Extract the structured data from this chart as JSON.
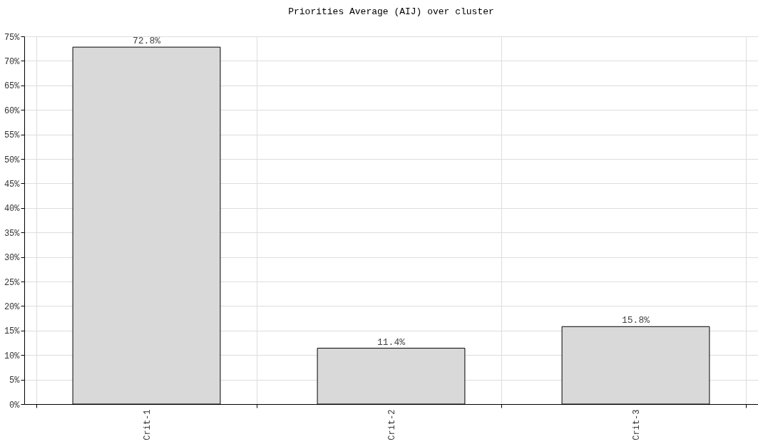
{
  "chart_data": {
    "type": "bar",
    "title": "Priorities Average (AIJ) over cluster",
    "categories": [
      "Crit-1",
      "Crit-2",
      "Crit-3"
    ],
    "values": [
      72.8,
      11.4,
      15.8
    ],
    "value_labels": [
      "72.8%",
      "11.4%",
      "15.8%"
    ],
    "color": "#d9d9d9",
    "ylim": [
      0,
      75
    ],
    "yticks": [
      {
        "value": 0,
        "label": "0%"
      },
      {
        "value": 5,
        "label": "5%"
      },
      {
        "value": 10,
        "label": "10%"
      },
      {
        "value": 15,
        "label": "15%"
      },
      {
        "value": 20,
        "label": "20%"
      },
      {
        "value": 25,
        "label": "25%"
      },
      {
        "value": 30,
        "label": "30%"
      },
      {
        "value": 35,
        "label": "35%"
      },
      {
        "value": 40,
        "label": "40%"
      },
      {
        "value": 45,
        "label": "45%"
      },
      {
        "value": 50,
        "label": "50%"
      },
      {
        "value": 55,
        "label": "55%"
      },
      {
        "value": 60,
        "label": "60%"
      },
      {
        "value": 65,
        "label": "65%"
      },
      {
        "value": 70,
        "label": "70%"
      },
      {
        "value": 75,
        "label": "75%"
      }
    ],
    "grid": true
  }
}
